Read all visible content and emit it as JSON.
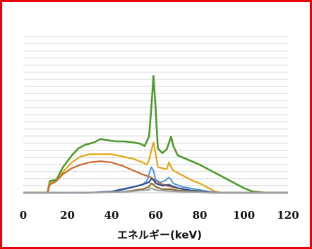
{
  "chart_data": {
    "type": "line",
    "xlabel": "エネルギー(keV)",
    "ylabel": "",
    "title": "",
    "xlim": [
      0,
      120
    ],
    "xticks": [
      0,
      20,
      40,
      60,
      80,
      100,
      120
    ],
    "ylim": [
      0,
      100
    ],
    "grid": "horizontal",
    "legend": "none",
    "series": [
      {
        "color": "#4e9a2f",
        "points": [
          [
            0,
            0
          ],
          [
            11,
            0
          ],
          [
            12,
            10
          ],
          [
            15,
            11
          ],
          [
            18,
            22
          ],
          [
            22,
            32
          ],
          [
            25,
            38
          ],
          [
            28,
            41
          ],
          [
            32,
            43
          ],
          [
            35,
            46
          ],
          [
            38,
            45
          ],
          [
            42,
            44
          ],
          [
            46,
            44
          ],
          [
            50,
            43
          ],
          [
            53,
            42
          ],
          [
            55,
            40
          ],
          [
            57,
            48
          ],
          [
            58,
            72
          ],
          [
            59,
            100
          ],
          [
            60,
            72
          ],
          [
            61,
            38
          ],
          [
            63,
            34
          ],
          [
            65,
            37
          ],
          [
            67,
            48
          ],
          [
            68,
            40
          ],
          [
            70,
            32
          ],
          [
            75,
            28
          ],
          [
            80,
            24
          ],
          [
            85,
            19
          ],
          [
            90,
            14
          ],
          [
            95,
            9
          ],
          [
            100,
            4
          ],
          [
            104,
            1
          ],
          [
            110,
            0
          ],
          [
            120,
            0
          ]
        ]
      },
      {
        "color": "#e3a714",
        "points": [
          [
            0,
            0
          ],
          [
            11,
            0
          ],
          [
            12,
            8
          ],
          [
            15,
            10
          ],
          [
            18,
            18
          ],
          [
            22,
            26
          ],
          [
            26,
            31
          ],
          [
            30,
            33
          ],
          [
            35,
            33
          ],
          [
            40,
            33
          ],
          [
            45,
            31
          ],
          [
            50,
            29
          ],
          [
            54,
            26
          ],
          [
            56,
            24
          ],
          [
            57,
            28
          ],
          [
            58,
            36
          ],
          [
            59,
            43
          ],
          [
            60,
            33
          ],
          [
            61,
            22
          ],
          [
            63,
            21
          ],
          [
            65,
            20
          ],
          [
            66,
            26
          ],
          [
            67,
            22
          ],
          [
            68,
            19
          ],
          [
            72,
            15
          ],
          [
            76,
            11
          ],
          [
            80,
            8
          ],
          [
            84,
            4
          ],
          [
            87,
            1
          ],
          [
            90,
            0
          ],
          [
            120,
            0
          ]
        ]
      },
      {
        "color": "#c9692b",
        "points": [
          [
            0,
            0
          ],
          [
            11,
            0
          ],
          [
            12,
            7
          ],
          [
            15,
            10
          ],
          [
            18,
            16
          ],
          [
            22,
            21
          ],
          [
            26,
            24
          ],
          [
            30,
            26
          ],
          [
            35,
            27
          ],
          [
            40,
            26
          ],
          [
            45,
            23
          ],
          [
            50,
            19
          ],
          [
            55,
            15
          ],
          [
            58,
            13
          ],
          [
            60,
            10
          ],
          [
            62,
            8
          ],
          [
            65,
            6
          ],
          [
            70,
            4
          ],
          [
            75,
            2
          ],
          [
            80,
            1
          ],
          [
            85,
            0
          ],
          [
            120,
            0
          ]
        ]
      },
      {
        "color": "#5b9bd5",
        "points": [
          [
            0,
            0
          ],
          [
            10,
            0
          ],
          [
            30,
            0
          ],
          [
            40,
            1
          ],
          [
            46,
            3
          ],
          [
            50,
            5
          ],
          [
            54,
            7
          ],
          [
            56,
            10
          ],
          [
            58,
            22
          ],
          [
            59,
            19
          ],
          [
            60,
            11
          ],
          [
            62,
            9
          ],
          [
            64,
            10
          ],
          [
            66,
            13
          ],
          [
            67,
            11
          ],
          [
            68,
            8
          ],
          [
            72,
            5
          ],
          [
            78,
            3
          ],
          [
            84,
            1
          ],
          [
            88,
            0
          ],
          [
            120,
            0
          ]
        ]
      },
      {
        "color": "#2f4d8f",
        "points": [
          [
            0,
            0
          ],
          [
            10,
            0
          ],
          [
            30,
            0
          ],
          [
            40,
            1
          ],
          [
            45,
            3
          ],
          [
            50,
            5
          ],
          [
            54,
            7
          ],
          [
            57,
            9
          ],
          [
            58,
            12
          ],
          [
            59,
            11
          ],
          [
            60,
            8
          ],
          [
            63,
            6
          ],
          [
            66,
            7
          ],
          [
            67,
            6
          ],
          [
            70,
            4
          ],
          [
            76,
            2
          ],
          [
            82,
            1
          ],
          [
            86,
            0
          ],
          [
            120,
            0
          ]
        ]
      },
      {
        "color": "#8a6d2a",
        "points": [
          [
            0,
            0
          ],
          [
            10,
            0
          ],
          [
            30,
            0
          ],
          [
            40,
            0.5
          ],
          [
            46,
            1
          ],
          [
            50,
            2
          ],
          [
            54,
            3
          ],
          [
            57,
            5
          ],
          [
            58,
            8
          ],
          [
            59,
            7
          ],
          [
            60,
            5
          ],
          [
            63,
            3
          ],
          [
            67,
            3
          ],
          [
            70,
            2
          ],
          [
            78,
            1
          ],
          [
            84,
            0
          ],
          [
            120,
            0
          ]
        ]
      },
      {
        "color": "#9aa0a6",
        "points": [
          [
            0,
            0
          ],
          [
            10,
            0
          ],
          [
            30,
            0
          ],
          [
            40,
            0.5
          ],
          [
            48,
            1
          ],
          [
            54,
            2
          ],
          [
            57,
            2.5
          ],
          [
            58,
            4
          ],
          [
            59,
            3
          ],
          [
            61,
            2
          ],
          [
            65,
            1.5
          ],
          [
            70,
            1
          ],
          [
            80,
            0.5
          ],
          [
            86,
            0
          ],
          [
            120,
            0
          ]
        ]
      }
    ]
  }
}
